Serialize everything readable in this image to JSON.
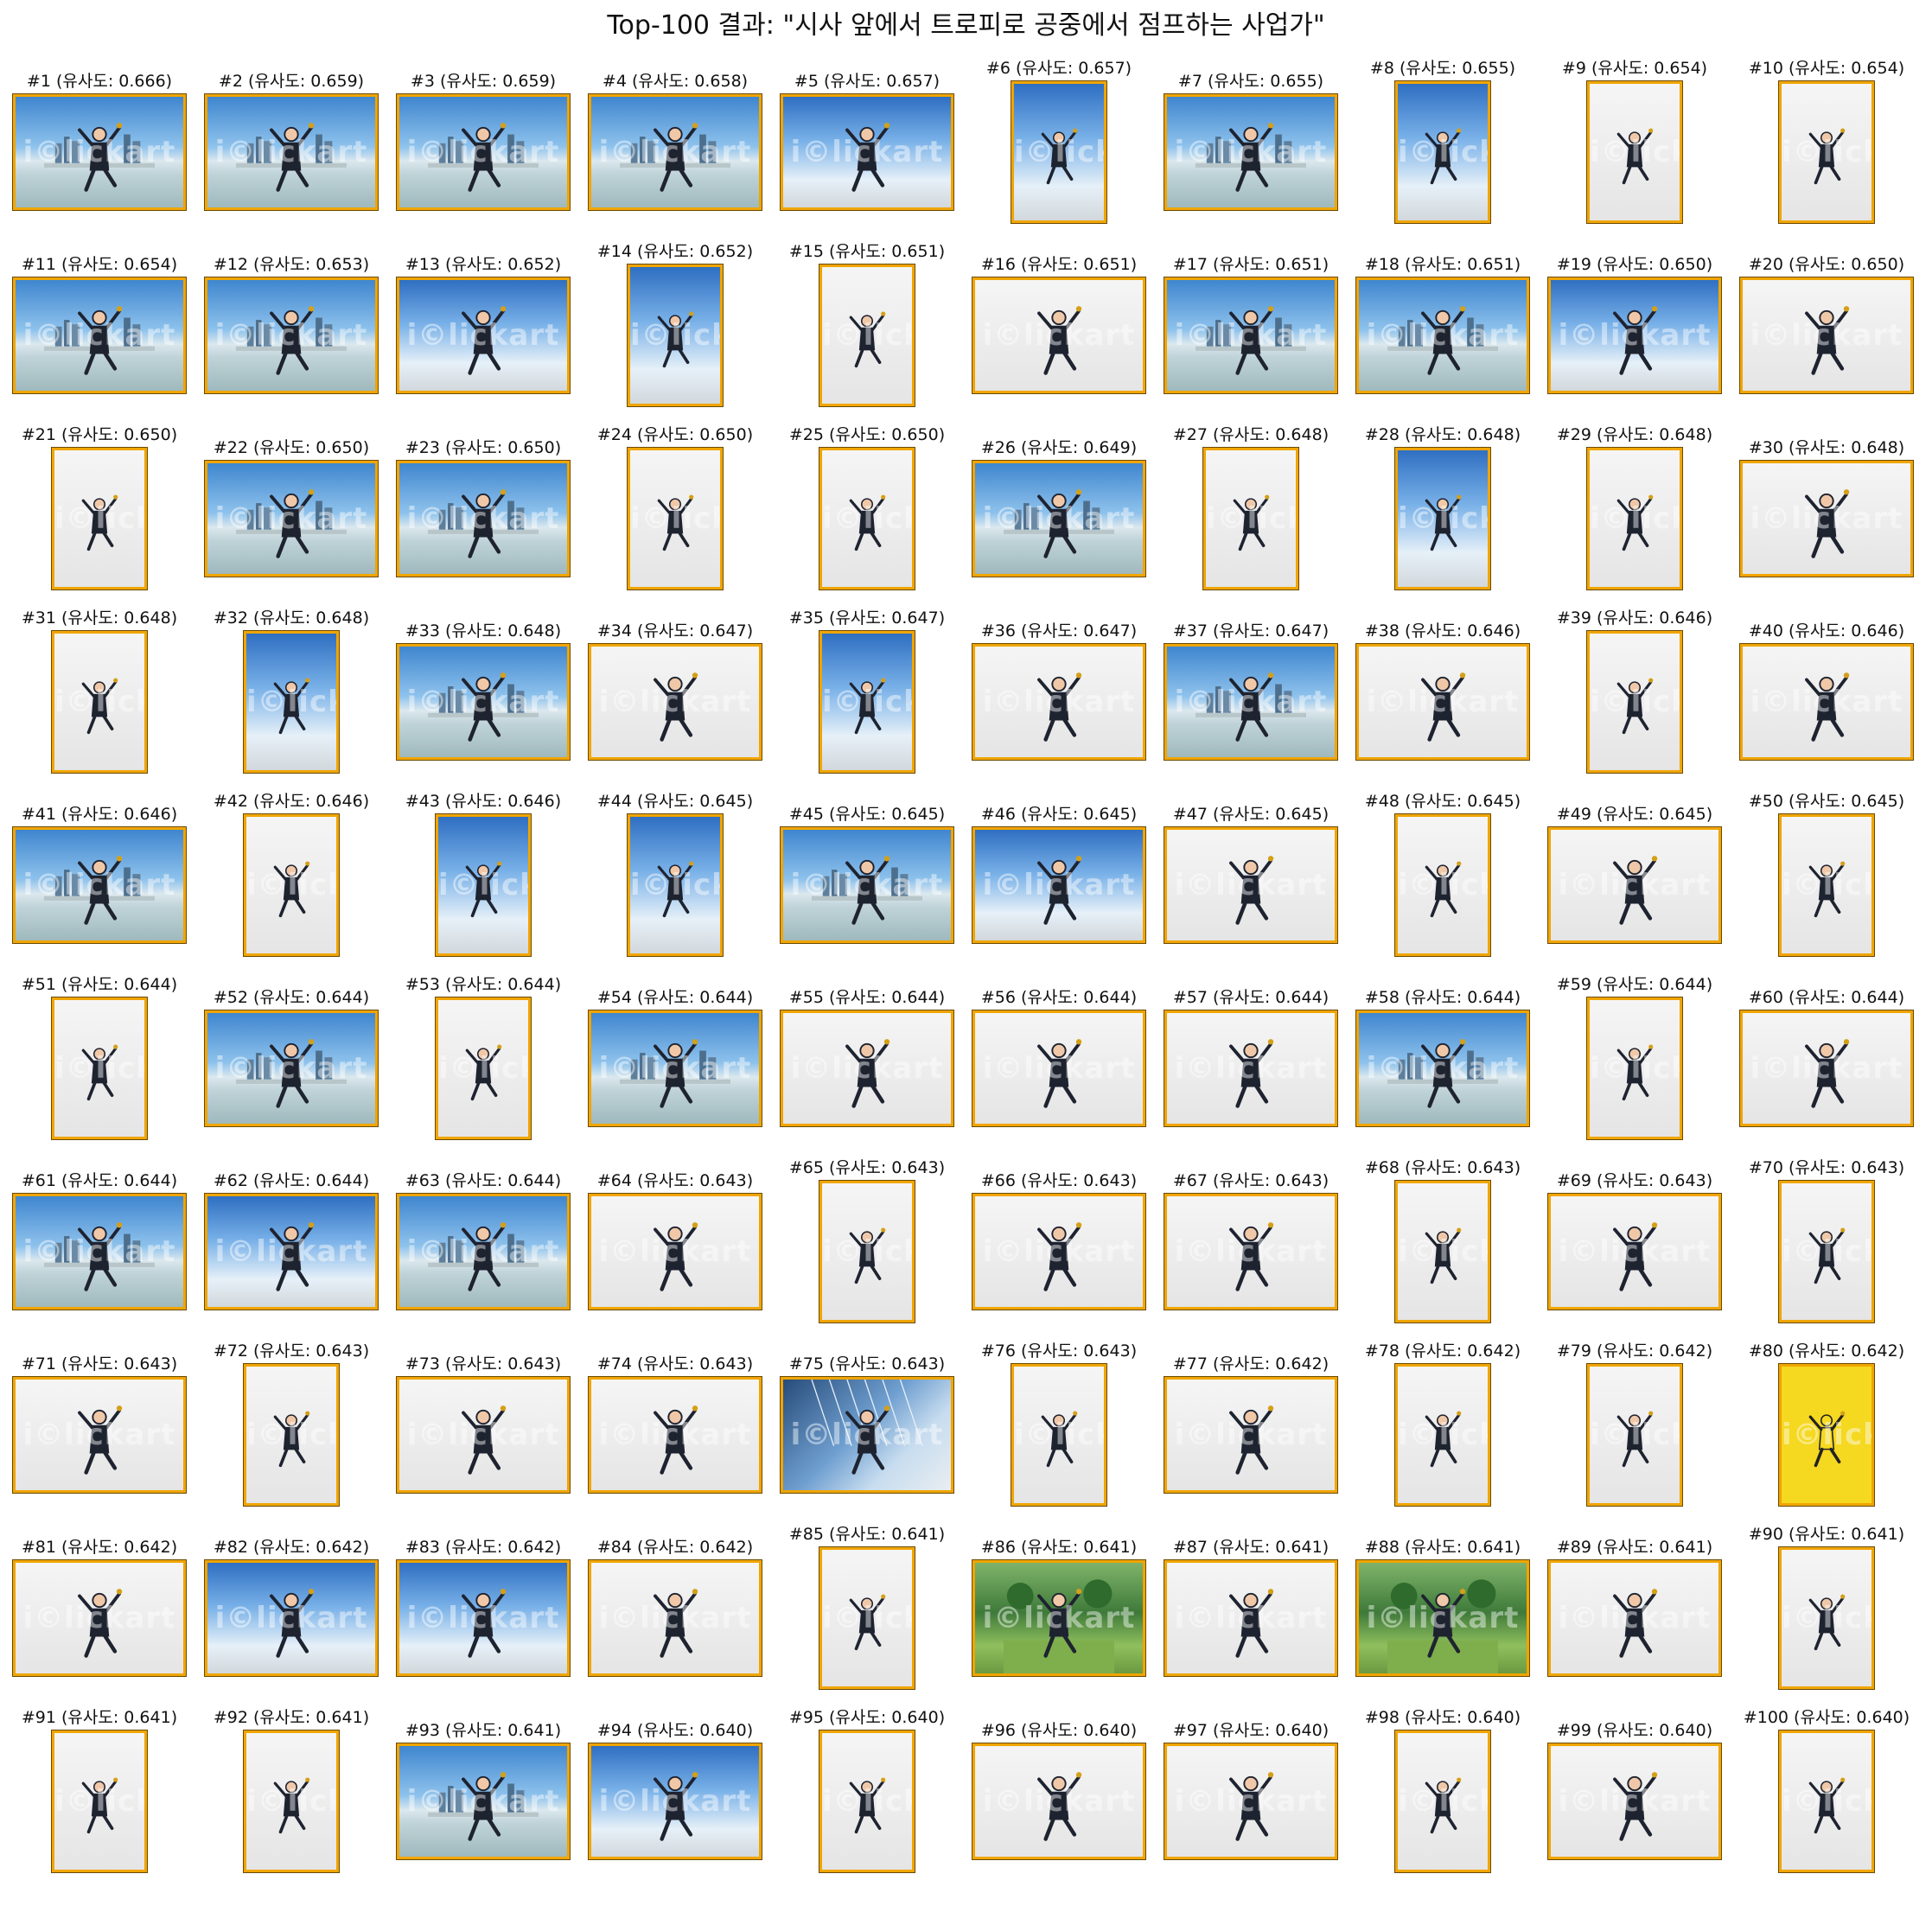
{
  "title": "Top-100 결과: \"시사 앞에서 트로피로 공중에서 점프하는 사업가\"",
  "caption_format": "#{rank} (유사도: {score})",
  "watermark": "i©lickart",
  "colors": {
    "frame": "#f0a500",
    "background": "#ffffff",
    "text": "#111111"
  },
  "results": [
    {
      "rank": 1,
      "score": "0.666",
      "scene": "city",
      "orientation": "landscape",
      "label": "#1 (유사도: 0.666)"
    },
    {
      "rank": 2,
      "score": "0.659",
      "scene": "city",
      "orientation": "landscape",
      "label": "#2 (유사도: 0.659)"
    },
    {
      "rank": 3,
      "score": "0.659",
      "scene": "city",
      "orientation": "landscape",
      "label": "#3 (유사도: 0.659)"
    },
    {
      "rank": 4,
      "score": "0.658",
      "scene": "city",
      "orientation": "landscape",
      "label": "#4 (유사도: 0.658)"
    },
    {
      "rank": 5,
      "score": "0.657",
      "scene": "sky",
      "orientation": "landscape",
      "label": "#5 (유사도: 0.657)"
    },
    {
      "rank": 6,
      "score": "0.657",
      "scene": "sky",
      "orientation": "portrait",
      "label": "#6 (유사도: 0.657)"
    },
    {
      "rank": 7,
      "score": "0.655",
      "scene": "city",
      "orientation": "landscape",
      "label": "#7 (유사도: 0.655)"
    },
    {
      "rank": 8,
      "score": "0.655",
      "scene": "sky",
      "orientation": "portrait",
      "label": "#8 (유사도: 0.655)"
    },
    {
      "rank": 9,
      "score": "0.654",
      "scene": "studio",
      "orientation": "portrait",
      "label": "#9 (유사도: 0.654)"
    },
    {
      "rank": 10,
      "score": "0.654",
      "scene": "studio",
      "orientation": "portrait",
      "label": "#10 (유사도: 0.654)"
    },
    {
      "rank": 11,
      "score": "0.654",
      "scene": "city",
      "orientation": "landscape",
      "label": "#11 (유사도: 0.654)"
    },
    {
      "rank": 12,
      "score": "0.653",
      "scene": "city",
      "orientation": "landscape",
      "label": "#12 (유사도: 0.653)"
    },
    {
      "rank": 13,
      "score": "0.652",
      "scene": "sky",
      "orientation": "landscape",
      "label": "#13 (유사도: 0.652)"
    },
    {
      "rank": 14,
      "score": "0.652",
      "scene": "sky",
      "orientation": "portrait",
      "label": "#14 (유사도: 0.652)"
    },
    {
      "rank": 15,
      "score": "0.651",
      "scene": "studio",
      "orientation": "portrait",
      "label": "#15 (유사도: 0.651)"
    },
    {
      "rank": 16,
      "score": "0.651",
      "scene": "studio",
      "orientation": "landscape",
      "label": "#16 (유사도: 0.651)"
    },
    {
      "rank": 17,
      "score": "0.651",
      "scene": "city",
      "orientation": "landscape",
      "label": "#17 (유사도: 0.651)"
    },
    {
      "rank": 18,
      "score": "0.651",
      "scene": "city",
      "orientation": "landscape",
      "label": "#18 (유사도: 0.651)"
    },
    {
      "rank": 19,
      "score": "0.650",
      "scene": "sky",
      "orientation": "landscape",
      "label": "#19 (유사도: 0.650)"
    },
    {
      "rank": 20,
      "score": "0.650",
      "scene": "studio",
      "orientation": "landscape",
      "label": "#20 (유사도: 0.650)"
    },
    {
      "rank": 21,
      "score": "0.650",
      "scene": "studio",
      "orientation": "portrait",
      "label": "#21 (유사도: 0.650)"
    },
    {
      "rank": 22,
      "score": "0.650",
      "scene": "city",
      "orientation": "landscape",
      "label": "#22 (유사도: 0.650)"
    },
    {
      "rank": 23,
      "score": "0.650",
      "scene": "city",
      "orientation": "landscape",
      "label": "#23 (유사도: 0.650)"
    },
    {
      "rank": 24,
      "score": "0.650",
      "scene": "studio",
      "orientation": "portrait",
      "label": "#24 (유사도: 0.650)"
    },
    {
      "rank": 25,
      "score": "0.650",
      "scene": "studio",
      "orientation": "portrait",
      "label": "#25 (유사도: 0.650)"
    },
    {
      "rank": 26,
      "score": "0.649",
      "scene": "city",
      "orientation": "landscape",
      "label": "#26 (유사도: 0.649)"
    },
    {
      "rank": 27,
      "score": "0.648",
      "scene": "studio",
      "orientation": "portrait",
      "label": "#27 (유사도: 0.648)"
    },
    {
      "rank": 28,
      "score": "0.648",
      "scene": "sky",
      "orientation": "portrait",
      "label": "#28 (유사도: 0.648)"
    },
    {
      "rank": 29,
      "score": "0.648",
      "scene": "studio",
      "orientation": "portrait",
      "label": "#29 (유사도: 0.648)"
    },
    {
      "rank": 30,
      "score": "0.648",
      "scene": "studio",
      "orientation": "landscape",
      "label": "#30 (유사도: 0.648)"
    },
    {
      "rank": 31,
      "score": "0.648",
      "scene": "studio",
      "orientation": "portrait",
      "label": "#31 (유사도: 0.648)"
    },
    {
      "rank": 32,
      "score": "0.648",
      "scene": "sky",
      "orientation": "portrait",
      "label": "#32 (유사도: 0.648)"
    },
    {
      "rank": 33,
      "score": "0.648",
      "scene": "city",
      "orientation": "landscape",
      "label": "#33 (유사도: 0.648)"
    },
    {
      "rank": 34,
      "score": "0.647",
      "scene": "studio",
      "orientation": "landscape",
      "label": "#34 (유사도: 0.647)"
    },
    {
      "rank": 35,
      "score": "0.647",
      "scene": "sky",
      "orientation": "portrait",
      "label": "#35 (유사도: 0.647)"
    },
    {
      "rank": 36,
      "score": "0.647",
      "scene": "studio",
      "orientation": "landscape",
      "label": "#36 (유사도: 0.647)"
    },
    {
      "rank": 37,
      "score": "0.647",
      "scene": "city",
      "orientation": "landscape",
      "label": "#37 (유사도: 0.647)"
    },
    {
      "rank": 38,
      "score": "0.646",
      "scene": "studio",
      "orientation": "landscape",
      "label": "#38 (유사도: 0.646)"
    },
    {
      "rank": 39,
      "score": "0.646",
      "scene": "studio",
      "orientation": "portrait",
      "label": "#39 (유사도: 0.646)"
    },
    {
      "rank": 40,
      "score": "0.646",
      "scene": "studio",
      "orientation": "landscape",
      "label": "#40 (유사도: 0.646)"
    },
    {
      "rank": 41,
      "score": "0.646",
      "scene": "city",
      "orientation": "landscape",
      "label": "#41 (유사도: 0.646)"
    },
    {
      "rank": 42,
      "score": "0.646",
      "scene": "studio",
      "orientation": "portrait",
      "label": "#42 (유사도: 0.646)"
    },
    {
      "rank": 43,
      "score": "0.646",
      "scene": "sky",
      "orientation": "portrait",
      "label": "#43 (유사도: 0.646)"
    },
    {
      "rank": 44,
      "score": "0.645",
      "scene": "sky",
      "orientation": "portrait",
      "label": "#44 (유사도: 0.645)"
    },
    {
      "rank": 45,
      "score": "0.645",
      "scene": "city",
      "orientation": "landscape",
      "label": "#45 (유사도: 0.645)"
    },
    {
      "rank": 46,
      "score": "0.645",
      "scene": "sky",
      "orientation": "landscape",
      "label": "#46 (유사도: 0.645)"
    },
    {
      "rank": 47,
      "score": "0.645",
      "scene": "studio",
      "orientation": "landscape",
      "label": "#47 (유사도: 0.645)"
    },
    {
      "rank": 48,
      "score": "0.645",
      "scene": "studio",
      "orientation": "portrait",
      "label": "#48 (유사도: 0.645)"
    },
    {
      "rank": 49,
      "score": "0.645",
      "scene": "studio",
      "orientation": "landscape",
      "label": "#49 (유사도: 0.645)"
    },
    {
      "rank": 50,
      "score": "0.645",
      "scene": "studio",
      "orientation": "portrait",
      "label": "#50 (유사도: 0.645)"
    },
    {
      "rank": 51,
      "score": "0.644",
      "scene": "studio",
      "orientation": "portrait",
      "label": "#51 (유사도: 0.644)"
    },
    {
      "rank": 52,
      "score": "0.644",
      "scene": "city",
      "orientation": "landscape",
      "label": "#52 (유사도: 0.644)"
    },
    {
      "rank": 53,
      "score": "0.644",
      "scene": "studio",
      "orientation": "portrait",
      "label": "#53 (유사도: 0.644)"
    },
    {
      "rank": 54,
      "score": "0.644",
      "scene": "city",
      "orientation": "landscape",
      "label": "#54 (유사도: 0.644)"
    },
    {
      "rank": 55,
      "score": "0.644",
      "scene": "studio",
      "orientation": "landscape",
      "label": "#55 (유사도: 0.644)"
    },
    {
      "rank": 56,
      "score": "0.644",
      "scene": "studio",
      "orientation": "landscape",
      "label": "#56 (유사도: 0.644)"
    },
    {
      "rank": 57,
      "score": "0.644",
      "scene": "studio",
      "orientation": "landscape",
      "label": "#57 (유사도: 0.644)"
    },
    {
      "rank": 58,
      "score": "0.644",
      "scene": "city",
      "orientation": "landscape",
      "label": "#58 (유사도: 0.644)"
    },
    {
      "rank": 59,
      "score": "0.644",
      "scene": "studio",
      "orientation": "portrait",
      "label": "#59 (유사도: 0.644)"
    },
    {
      "rank": 60,
      "score": "0.644",
      "scene": "studio",
      "orientation": "landscape",
      "label": "#60 (유사도: 0.644)"
    },
    {
      "rank": 61,
      "score": "0.644",
      "scene": "city",
      "orientation": "landscape",
      "label": "#61 (유사도: 0.644)"
    },
    {
      "rank": 62,
      "score": "0.644",
      "scene": "sky",
      "orientation": "landscape",
      "label": "#62 (유사도: 0.644)"
    },
    {
      "rank": 63,
      "score": "0.644",
      "scene": "city",
      "orientation": "landscape",
      "label": "#63 (유사도: 0.644)"
    },
    {
      "rank": 64,
      "score": "0.643",
      "scene": "studio",
      "orientation": "landscape",
      "label": "#64 (유사도: 0.643)"
    },
    {
      "rank": 65,
      "score": "0.643",
      "scene": "studio",
      "orientation": "portrait",
      "label": "#65 (유사도: 0.643)"
    },
    {
      "rank": 66,
      "score": "0.643",
      "scene": "studio",
      "orientation": "landscape",
      "label": "#66 (유사도: 0.643)"
    },
    {
      "rank": 67,
      "score": "0.643",
      "scene": "studio",
      "orientation": "landscape",
      "label": "#67 (유사도: 0.643)"
    },
    {
      "rank": 68,
      "score": "0.643",
      "scene": "studio",
      "orientation": "portrait",
      "label": "#68 (유사도: 0.643)"
    },
    {
      "rank": 69,
      "score": "0.643",
      "scene": "studio",
      "orientation": "landscape",
      "label": "#69 (유사도: 0.643)"
    },
    {
      "rank": 70,
      "score": "0.643",
      "scene": "studio",
      "orientation": "portrait",
      "label": "#70 (유사도: 0.643)"
    },
    {
      "rank": 71,
      "score": "0.643",
      "scene": "studio",
      "orientation": "landscape",
      "label": "#71 (유사도: 0.643)"
    },
    {
      "rank": 72,
      "score": "0.643",
      "scene": "studio",
      "orientation": "portrait",
      "label": "#72 (유사도: 0.643)"
    },
    {
      "rank": 73,
      "score": "0.643",
      "scene": "studio",
      "orientation": "landscape",
      "label": "#73 (유사도: 0.643)"
    },
    {
      "rank": 74,
      "score": "0.643",
      "scene": "studio",
      "orientation": "landscape",
      "label": "#74 (유사도: 0.643)"
    },
    {
      "rank": 75,
      "score": "0.643",
      "scene": "glass",
      "orientation": "landscape",
      "label": "#75 (유사도: 0.643)"
    },
    {
      "rank": 76,
      "score": "0.643",
      "scene": "studio",
      "orientation": "portrait",
      "label": "#76 (유사도: 0.643)"
    },
    {
      "rank": 77,
      "score": "0.642",
      "scene": "studio",
      "orientation": "landscape",
      "label": "#77 (유사도: 0.642)"
    },
    {
      "rank": 78,
      "score": "0.642",
      "scene": "studio",
      "orientation": "portrait",
      "label": "#78 (유사도: 0.642)"
    },
    {
      "rank": 79,
      "score": "0.642",
      "scene": "studio",
      "orientation": "portrait",
      "label": "#79 (유사도: 0.642)"
    },
    {
      "rank": 80,
      "score": "0.642",
      "scene": "yellow",
      "orientation": "portrait",
      "label": "#80 (유사도: 0.642)"
    },
    {
      "rank": 81,
      "score": "0.642",
      "scene": "studio",
      "orientation": "landscape",
      "label": "#81 (유사도: 0.642)"
    },
    {
      "rank": 82,
      "score": "0.642",
      "scene": "sky",
      "orientation": "landscape",
      "label": "#82 (유사도: 0.642)"
    },
    {
      "rank": 83,
      "score": "0.642",
      "scene": "sky",
      "orientation": "landscape",
      "label": "#83 (유사도: 0.642)"
    },
    {
      "rank": 84,
      "score": "0.642",
      "scene": "studio",
      "orientation": "landscape",
      "label": "#84 (유사도: 0.642)"
    },
    {
      "rank": 85,
      "score": "0.641",
      "scene": "studio",
      "orientation": "portrait",
      "label": "#85 (유사도: 0.641)"
    },
    {
      "rank": 86,
      "score": "0.641",
      "scene": "park",
      "orientation": "landscape",
      "label": "#86 (유사도: 0.641)"
    },
    {
      "rank": 87,
      "score": "0.641",
      "scene": "studio",
      "orientation": "landscape",
      "label": "#87 (유사도: 0.641)"
    },
    {
      "rank": 88,
      "score": "0.641",
      "scene": "park",
      "orientation": "landscape",
      "label": "#88 (유사도: 0.641)"
    },
    {
      "rank": 89,
      "score": "0.641",
      "scene": "studio",
      "orientation": "landscape",
      "label": "#89 (유사도: 0.641)"
    },
    {
      "rank": 90,
      "score": "0.641",
      "scene": "studio",
      "orientation": "portrait",
      "label": "#90 (유사도: 0.641)"
    },
    {
      "rank": 91,
      "score": "0.641",
      "scene": "studio",
      "orientation": "portrait",
      "label": "#91 (유사도: 0.641)"
    },
    {
      "rank": 92,
      "score": "0.641",
      "scene": "studio",
      "orientation": "portrait",
      "label": "#92 (유사도: 0.641)"
    },
    {
      "rank": 93,
      "score": "0.641",
      "scene": "city",
      "orientation": "landscape",
      "label": "#93 (유사도: 0.641)"
    },
    {
      "rank": 94,
      "score": "0.640",
      "scene": "sky",
      "orientation": "landscape",
      "label": "#94 (유사도: 0.640)"
    },
    {
      "rank": 95,
      "score": "0.640",
      "scene": "studio",
      "orientation": "portrait",
      "label": "#95 (유사도: 0.640)"
    },
    {
      "rank": 96,
      "score": "0.640",
      "scene": "studio",
      "orientation": "landscape",
      "label": "#96 (유사도: 0.640)"
    },
    {
      "rank": 97,
      "score": "0.640",
      "scene": "studio",
      "orientation": "landscape",
      "label": "#97 (유사도: 0.640)"
    },
    {
      "rank": 98,
      "score": "0.640",
      "scene": "studio",
      "orientation": "portrait",
      "label": "#98 (유사도: 0.640)"
    },
    {
      "rank": 99,
      "score": "0.640",
      "scene": "studio",
      "orientation": "landscape",
      "label": "#99 (유사도: 0.640)"
    },
    {
      "rank": 100,
      "score": "0.640",
      "scene": "studio",
      "orientation": "portrait",
      "label": "#100 (유사도: 0.640)"
    }
  ]
}
